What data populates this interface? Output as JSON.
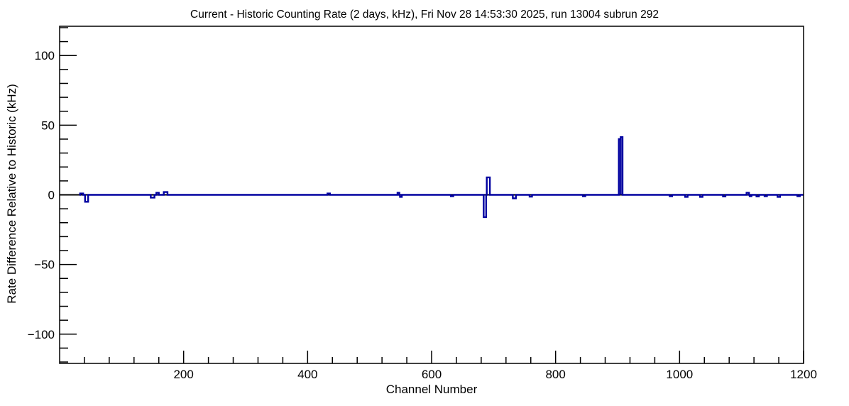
{
  "chart_data": {
    "type": "line",
    "title": "Current - Historic Counting Rate (2 days, kHz), Fri Nov 28 14:53:30 2025, run 13004 subrun 292",
    "xlabel": "Channel Number",
    "ylabel": "Rate Difference Relative to Historic (kHz)",
    "xlim": [
      0,
      1200
    ],
    "ylim": [
      -121,
      121
    ],
    "x_major_ticks": [
      200,
      400,
      600,
      800,
      1000,
      1200
    ],
    "x_minor_step": 40,
    "y_major_ticks": [
      -100,
      -50,
      0,
      50,
      100
    ],
    "y_minor_step": 10,
    "grid": "off",
    "legend": "none",
    "line_color": "#0000a0",
    "zero_line_color": "#000000",
    "frame_color": "#000000",
    "background_color": "#ffffff",
    "histogram": {
      "baseline_kHz": 0,
      "start_channel": 32,
      "end_channel": 1200,
      "note": "deviations are [channel_start, channel_end, value_kHz]; all other channels are at 0",
      "deviations": [
        [
          33,
          38,
          1
        ],
        [
          41,
          46,
          -5
        ],
        [
          147,
          153,
          -2
        ],
        [
          156,
          160,
          1.5
        ],
        [
          168,
          174,
          2
        ],
        [
          432,
          436,
          1
        ],
        [
          545,
          548,
          1.5
        ],
        [
          549,
          552,
          -1.5
        ],
        [
          631,
          635,
          -1
        ],
        [
          684,
          688,
          -16
        ],
        [
          689,
          694,
          12.5
        ],
        [
          731,
          736,
          -2.5
        ],
        [
          758,
          762,
          -1.3
        ],
        [
          844,
          848,
          -1
        ],
        [
          902,
          905,
          40
        ],
        [
          905,
          908,
          41.5
        ],
        [
          984,
          988,
          -1
        ],
        [
          1009,
          1013,
          -1.5
        ],
        [
          1033,
          1037,
          -1.5
        ],
        [
          1070,
          1074,
          -1.2
        ],
        [
          1108,
          1112,
          1.5
        ],
        [
          1113,
          1116,
          -1
        ],
        [
          1124,
          1128,
          -1.2
        ],
        [
          1137,
          1141,
          -1
        ],
        [
          1158,
          1162,
          -1.5
        ],
        [
          1190,
          1194,
          -1
        ]
      ]
    }
  }
}
